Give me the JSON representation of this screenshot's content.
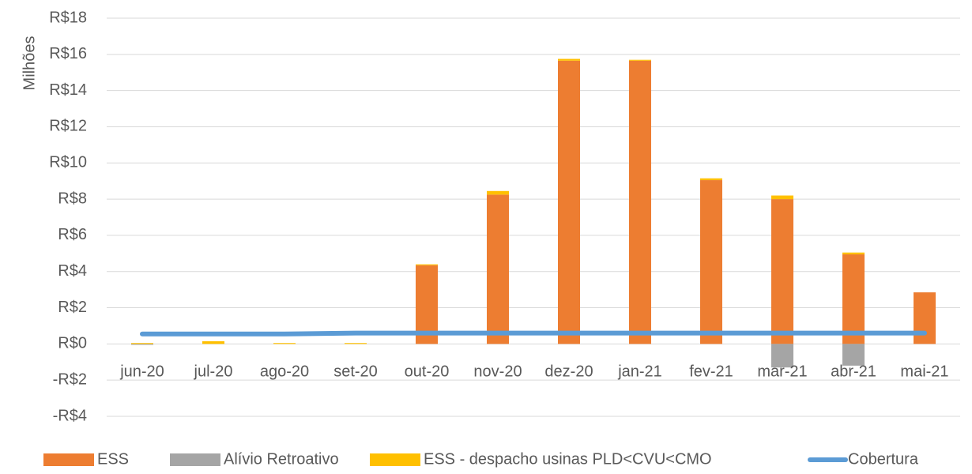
{
  "chart_data": {
    "type": "bar",
    "stacked": true,
    "y_label": "Milhões",
    "categories": [
      "jun-20",
      "jul-20",
      "ago-20",
      "set-20",
      "out-20",
      "nov-20",
      "dez-20",
      "jan-21",
      "fev-21",
      "mar-21",
      "abr-21",
      "mai-21"
    ],
    "series": [
      {
        "name": "ESS",
        "color": "#ed7d31",
        "type": "bar",
        "values": [
          0,
          0,
          0,
          0,
          4.35,
          8.25,
          15.65,
          15.65,
          9.05,
          8.0,
          4.95,
          2.85
        ]
      },
      {
        "name": "Alívio Retroativo",
        "color": "#a5a5a5",
        "type": "bar",
        "values": [
          -0.05,
          0,
          0,
          0,
          0,
          0,
          0,
          0,
          0,
          -1.3,
          -1.2,
          0
        ]
      },
      {
        "name": "ESS - despacho usinas PLD<CVU<CMO",
        "color": "#ffc000",
        "type": "bar",
        "values": [
          0.05,
          0.15,
          0.05,
          0.05,
          0.05,
          0.2,
          0.1,
          0.05,
          0.1,
          0.2,
          0.1,
          0
        ]
      },
      {
        "name": "Cobertura",
        "color": "#5b9bd5",
        "type": "line",
        "values": [
          0.55,
          0.55,
          0.55,
          0.6,
          0.6,
          0.6,
          0.6,
          0.6,
          0.6,
          0.6,
          0.6,
          0.6
        ]
      }
    ],
    "ylim": [
      -4,
      18
    ],
    "yticks": [
      {
        "value": -4,
        "label": "-R$4"
      },
      {
        "value": -2,
        "label": "-R$2"
      },
      {
        "value": 0,
        "label": "R$0"
      },
      {
        "value": 2,
        "label": "R$2"
      },
      {
        "value": 4,
        "label": "R$4"
      },
      {
        "value": 6,
        "label": "R$6"
      },
      {
        "value": 8,
        "label": "R$8"
      },
      {
        "value": 10,
        "label": "R$10"
      },
      {
        "value": 12,
        "label": "R$12"
      },
      {
        "value": 14,
        "label": "R$14"
      },
      {
        "value": 16,
        "label": "R$16"
      },
      {
        "value": 18,
        "label": "R$18"
      }
    ],
    "grid": true,
    "legend": "bottom"
  }
}
